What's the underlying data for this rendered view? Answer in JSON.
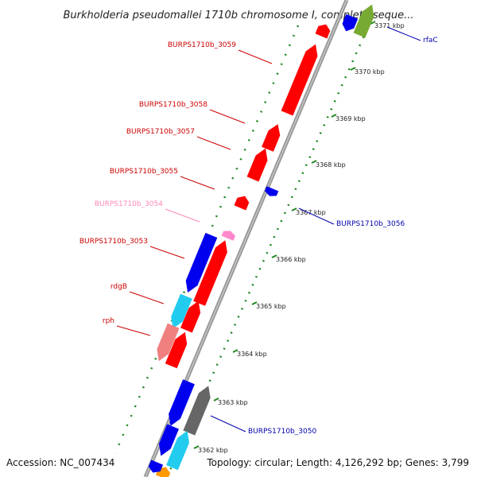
{
  "title": "Burkholderia pseudomallei 1710b chromosome I, complete seque...",
  "footer": {
    "accession": "Accession: NC_007434",
    "summary": "Topology: circular; Length: 4,126,292 bp; Genes: 3,799"
  },
  "colors": {
    "forward_gene": "#ff0000",
    "reverse_gene": "#0000ee",
    "cyan_gene": "#22ccee",
    "salmon_gene": "#f08080",
    "pink_gene": "#ff88cc",
    "olive_gene": "#77aa33",
    "gray_gene": "#666666",
    "orange_gene": "#ff9900",
    "tick_mark": "#228822",
    "backbone": "#999999",
    "label_red": "#cc0000",
    "label_blue": "#0000aa",
    "label_pink": "#ff88bb"
  },
  "ticks": [
    {
      "label": "3362 kbp"
    },
    {
      "label": "3363 kbp"
    },
    {
      "label": "3364 kbp"
    },
    {
      "label": "3365 kbp"
    },
    {
      "label": "3366 kbp"
    },
    {
      "label": "3367 kbp"
    },
    {
      "label": "3368 kbp"
    },
    {
      "label": "3369 kbp"
    },
    {
      "label": "3370 kbp"
    },
    {
      "label": "3371 kbp"
    }
  ],
  "gene_labels": [
    {
      "text": "BURPS1710b_3059",
      "color": "label_red"
    },
    {
      "text": "BURPS1710b_3058",
      "color": "label_red"
    },
    {
      "text": "BURPS1710b_3057",
      "color": "label_red"
    },
    {
      "text": "BURPS1710b_3055",
      "color": "label_red"
    },
    {
      "text": "BURPS1710b_3054",
      "color": "label_pink"
    },
    {
      "text": "BURPS1710b_3053",
      "color": "label_red"
    },
    {
      "text": "rdgB",
      "color": "label_red"
    },
    {
      "text": "rph",
      "color": "label_red"
    },
    {
      "text": "rfaC",
      "color": "label_blue"
    },
    {
      "text": "BURPS1710b_3056",
      "color": "label_blue"
    },
    {
      "text": "BURPS1710b_3050",
      "color": "label_blue"
    }
  ]
}
